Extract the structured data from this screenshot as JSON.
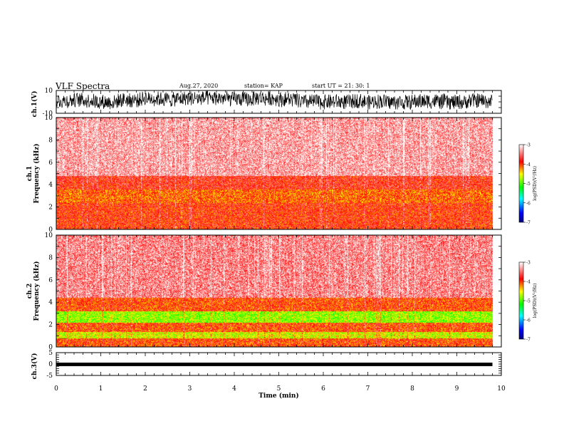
{
  "header": {
    "title": "VLF Spectra",
    "date": "Aug.27, 2020",
    "station": "station= KAP",
    "start": "start  UT  =   21: 30: 1"
  },
  "chart_data": [
    {
      "type": "line",
      "panel": "ch1-waveform",
      "ylabel": "ch.1(V)",
      "ylim": [
        -10,
        10
      ],
      "yticks": [
        "10",
        "-10"
      ],
      "xlim": [
        0,
        10
      ],
      "trace_level_range": [
        -5,
        8
      ]
    },
    {
      "type": "heatmap",
      "panel": "ch1-spectrogram",
      "ylabel": "ch.1\nFrequency (kHz)",
      "xlim": [
        0,
        10
      ],
      "data_end_min": 9.8,
      "ylim": [
        0,
        10
      ],
      "yticks": [
        "0",
        "2",
        "4",
        "6",
        "8",
        "10"
      ],
      "colorbar": {
        "label": "log(PSD)(V²/Hz)",
        "ticks": [
          "-3",
          "-4",
          "-5",
          "-6",
          "-7"
        ],
        "range": [
          -7,
          -3
        ]
      },
      "bands_khz": [
        {
          "from": 0,
          "to": 1,
          "level": -3.9
        },
        {
          "from": 1,
          "to": 2.4,
          "level": -3.9
        },
        {
          "from": 2.4,
          "to": 3.6,
          "level": -4.1
        },
        {
          "from": 3.6,
          "to": 4.8,
          "level": -3.8
        },
        {
          "from": 4.8,
          "to": 10,
          "level": -3.3
        }
      ]
    },
    {
      "type": "heatmap",
      "panel": "ch2-spectrogram",
      "ylabel": "ch.2\nFrequency (kHz)",
      "xlim": [
        0,
        10
      ],
      "data_end_min": 9.8,
      "ylim": [
        0,
        10
      ],
      "yticks": [
        "0",
        "2",
        "4",
        "6",
        "8",
        "10"
      ],
      "colorbar": {
        "label": "log(PSD)(V²/Hz)",
        "ticks": [
          "-3",
          "-4",
          "-5",
          "-6",
          "-7"
        ],
        "range": [
          -7,
          -3
        ]
      },
      "bands_khz": [
        {
          "from": 0,
          "to": 0.8,
          "level": -4.0
        },
        {
          "from": 0.8,
          "to": 1.4,
          "level": -4.6
        },
        {
          "from": 1.4,
          "to": 2.2,
          "level": -4.0
        },
        {
          "from": 2.2,
          "to": 3.2,
          "level": -4.8
        },
        {
          "from": 3.2,
          "to": 4.4,
          "level": -4.0
        },
        {
          "from": 4.4,
          "to": 10,
          "level": -3.4
        }
      ]
    },
    {
      "type": "line",
      "panel": "ch3-waveform",
      "ylabel": "ch.3(V)",
      "ylim": [
        -5,
        5
      ],
      "yticks": [
        "5",
        "0",
        "-5"
      ],
      "xlim": [
        0,
        10
      ],
      "xticks": [
        "0",
        "1",
        "2",
        "3",
        "4",
        "5",
        "6",
        "7",
        "8",
        "9",
        "10"
      ],
      "xlabel": "Time (min)",
      "trace_level_range": [
        -0.6,
        0
      ]
    }
  ],
  "colors": {
    "cmap": [
      "#000080",
      "#0000ff",
      "#00ffff",
      "#00ff00",
      "#ffff00",
      "#ff0000",
      "#ffffff"
    ],
    "axis": "#000000",
    "trace": "#000000"
  }
}
